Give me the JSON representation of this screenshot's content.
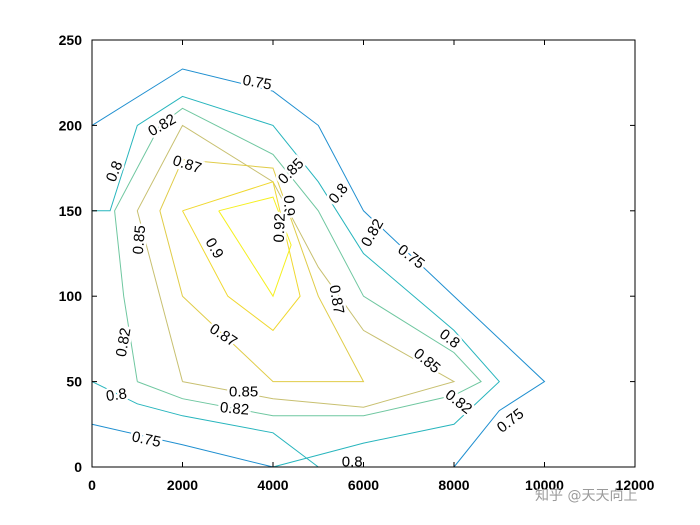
{
  "chart_data": {
    "type": "contour",
    "xlim": [
      0,
      12000
    ],
    "ylim": [
      0,
      250
    ],
    "x_ticks": [
      0,
      2000,
      4000,
      6000,
      8000,
      10000,
      12000
    ],
    "y_ticks": [
      0,
      50,
      100,
      150,
      200,
      250
    ],
    "x_tick_labels": [
      "0",
      "2000",
      "4000",
      "6000",
      "8000",
      "10000",
      "12000"
    ],
    "y_tick_labels": [
      "0",
      "50",
      "100",
      "150",
      "200",
      "250"
    ],
    "grid": false,
    "levels": [
      {
        "value": 0.75,
        "color": "#1f8fd0",
        "paths": [
          [
            [
              0,
              200
            ],
            [
              2000,
              233
            ],
            [
              4000,
              220
            ],
            [
              5000,
              200
            ],
            [
              6000,
              150
            ],
            [
              8000,
              100
            ],
            [
              10000,
              50
            ],
            [
              9000,
              33
            ],
            [
              8000,
              0
            ]
          ],
          [
            [
              0,
              25
            ],
            [
              2000,
              13
            ],
            [
              4000,
              0
            ]
          ]
        ],
        "labels": [
          {
            "text": "0.75",
            "x": 3650,
            "y": 225,
            "angle": 10
          },
          {
            "text": "0.75",
            "x": 7050,
            "y": 123,
            "angle": 38
          },
          {
            "text": "0.75",
            "x": 9250,
            "y": 27,
            "angle": -38
          },
          {
            "text": "0.75",
            "x": 1200,
            "y": 16,
            "angle": 12
          }
        ]
      },
      {
        "value": 0.8,
        "color": "#27b5bd",
        "paths": [
          [
            [
              0,
              150
            ],
            [
              400,
              150
            ],
            [
              1000,
              200
            ],
            [
              2000,
              217
            ],
            [
              4000,
              200
            ],
            [
              5000,
              167
            ],
            [
              6000,
              125
            ],
            [
              8000,
              80
            ],
            [
              9000,
              50
            ],
            [
              8000,
              25
            ],
            [
              6000,
              14
            ],
            [
              4000,
              0
            ]
          ],
          [
            [
              0,
              50
            ],
            [
              1000,
              37
            ],
            [
              2000,
              30
            ],
            [
              4000,
              20
            ],
            [
              5000,
              0
            ]
          ]
        ],
        "labels": [
          {
            "text": "0.8",
            "x": 500,
            "y": 173,
            "angle": -68
          },
          {
            "text": "0.8",
            "x": 540,
            "y": 42,
            "angle": -8
          },
          {
            "text": "0.8",
            "x": 5450,
            "y": 160,
            "angle": -50
          },
          {
            "text": "0.8",
            "x": 7900,
            "y": 75,
            "angle": 38
          },
          {
            "text": "0.8",
            "x": 5750,
            "y": 3,
            "angle": 0
          }
        ]
      },
      {
        "value": 0.82,
        "color": "#6fc7a0",
        "paths": [
          [
            [
              1000,
              50
            ],
            [
              700,
              100
            ],
            [
              500,
              150
            ],
            [
              1500,
              200
            ],
            [
              2000,
              210
            ],
            [
              4000,
              183
            ],
            [
              5000,
              150
            ],
            [
              6000,
              100
            ],
            [
              8000,
              67
            ],
            [
              8600,
              50
            ],
            [
              8000,
              42
            ],
            [
              6000,
              30
            ],
            [
              4000,
              30
            ],
            [
              2000,
              40
            ],
            [
              1000,
              50
            ]
          ]
        ],
        "labels": [
          {
            "text": "0.82",
            "x": 1550,
            "y": 200,
            "angle": -30
          },
          {
            "text": "0.82",
            "x": 6200,
            "y": 137,
            "angle": -60
          },
          {
            "text": "0.82",
            "x": 700,
            "y": 73,
            "angle": -80
          },
          {
            "text": "0.82",
            "x": 3150,
            "y": 34,
            "angle": 5
          },
          {
            "text": "0.82",
            "x": 8100,
            "y": 38,
            "angle": 38
          }
        ]
      },
      {
        "value": 0.85,
        "color": "#c8c070",
        "paths": [
          [
            [
              2000,
              50
            ],
            [
              1500,
              100
            ],
            [
              1000,
              150
            ],
            [
              2000,
              200
            ],
            [
              4000,
              167
            ],
            [
              5000,
              117
            ],
            [
              6000,
              80
            ],
            [
              8000,
              50
            ],
            [
              6000,
              35
            ],
            [
              4000,
              40
            ],
            [
              2000,
              50
            ]
          ]
        ],
        "labels": [
          {
            "text": "0.85",
            "x": 4400,
            "y": 173,
            "angle": -45
          },
          {
            "text": "0.85",
            "x": 1050,
            "y": 133,
            "angle": -85
          },
          {
            "text": "0.85",
            "x": 3350,
            "y": 44,
            "angle": 0
          },
          {
            "text": "0.85",
            "x": 7400,
            "y": 62,
            "angle": 40
          }
        ]
      },
      {
        "value": 0.87,
        "color": "#e0cc48",
        "paths": [
          [
            [
              2000,
              100
            ],
            [
              1500,
              150
            ],
            [
              2000,
              180
            ],
            [
              4000,
              175
            ],
            [
              5000,
              100
            ],
            [
              6000,
              50
            ],
            [
              4000,
              50
            ],
            [
              2000,
              100
            ]
          ]
        ],
        "labels": [
          {
            "text": "0.87",
            "x": 2100,
            "y": 177,
            "angle": 18
          },
          {
            "text": "0.87",
            "x": 5400,
            "y": 98,
            "angle": 80
          },
          {
            "text": "0.87",
            "x": 2900,
            "y": 77,
            "angle": 33
          }
        ]
      },
      {
        "value": 0.9,
        "color": "#f0d830",
        "paths": [
          [
            [
              2000,
              150
            ],
            [
              4000,
              167
            ],
            [
              4600,
              100
            ],
            [
              4000,
              80
            ],
            [
              3000,
              100
            ],
            [
              2000,
              150
            ]
          ]
        ],
        "labels": [
          {
            "text": "0.9",
            "x": 4350,
            "y": 153,
            "angle": 88
          },
          {
            "text": "0.9",
            "x": 2700,
            "y": 128,
            "angle": 60
          }
        ]
      },
      {
        "value": 0.92,
        "color": "#f5f020",
        "paths": [
          [
            [
              2800,
              150
            ],
            [
              4000,
              158
            ],
            [
              4400,
              130
            ],
            [
              4000,
              100
            ],
            [
              2800,
              150
            ]
          ]
        ],
        "labels": [
          {
            "text": "0.92",
            "x": 4150,
            "y": 140,
            "angle": -88
          }
        ]
      }
    ]
  },
  "watermark": {
    "text": "知乎 @天天向上"
  }
}
